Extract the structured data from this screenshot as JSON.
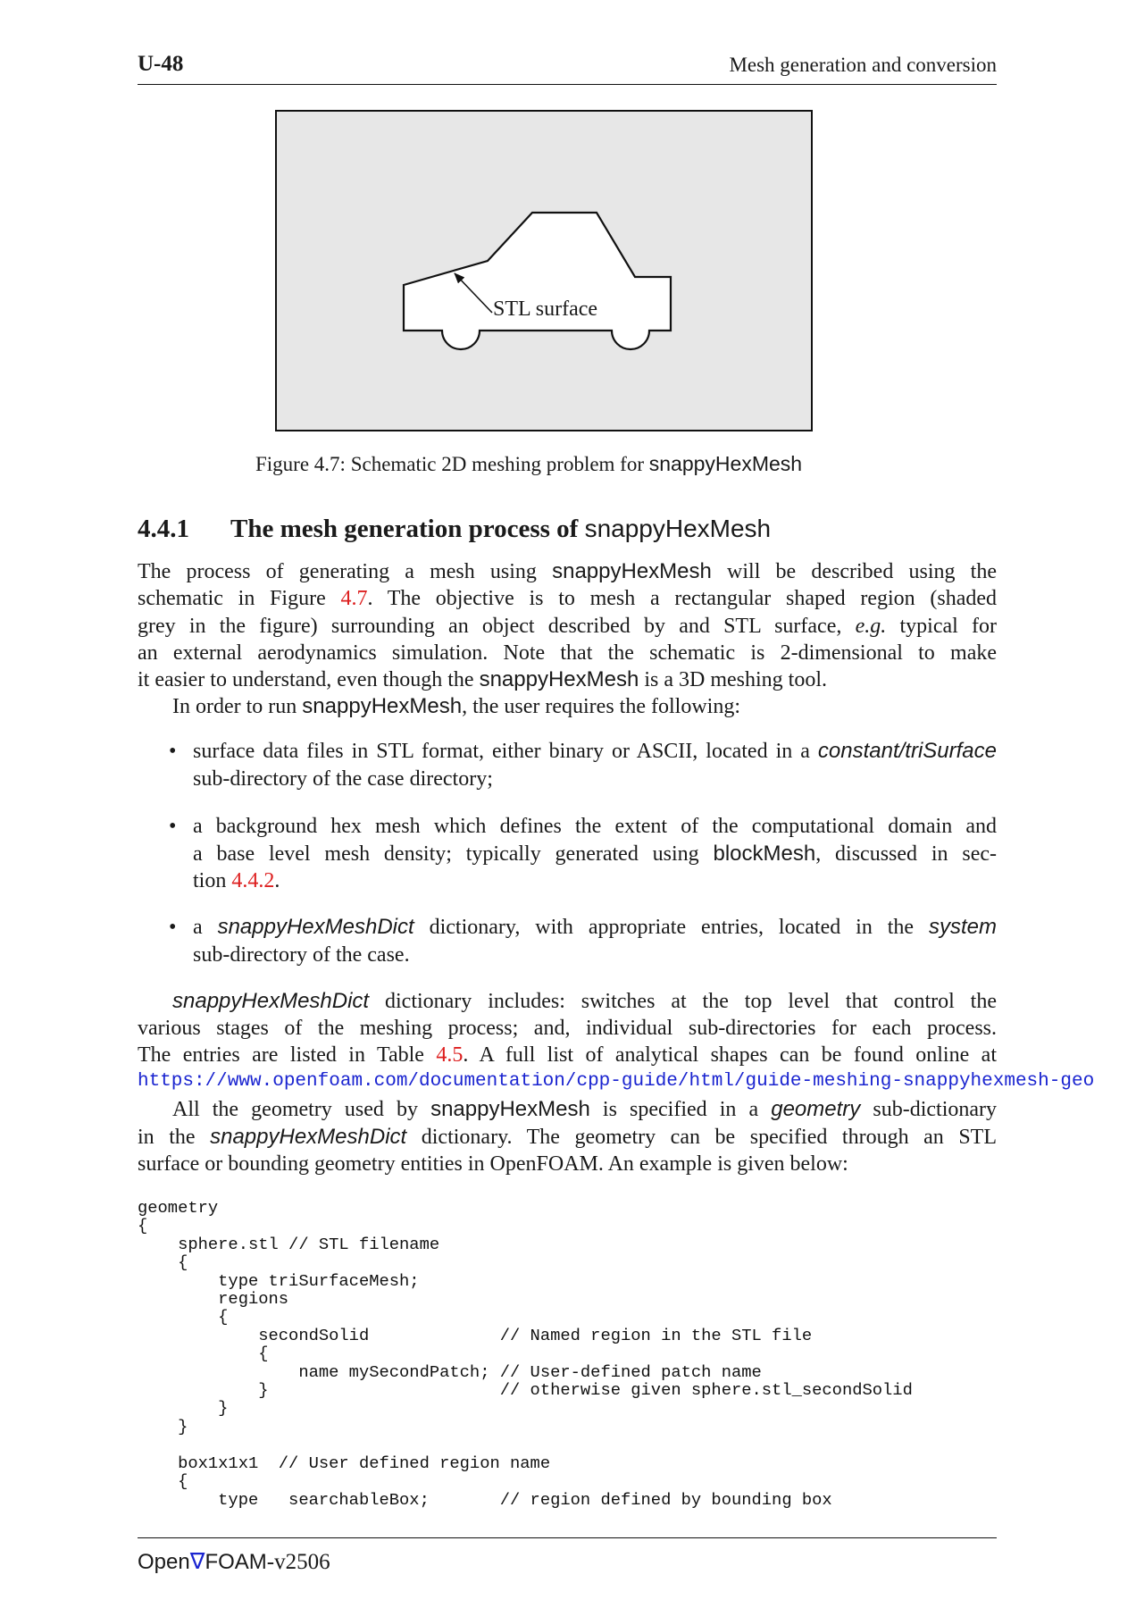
{
  "header": {
    "page_number": "U-48",
    "chapter_title": "Mesh generation and conversion"
  },
  "figure": {
    "stl_label": "STL surface",
    "caption_prefix": "Figure 4.7: Schematic 2D meshing problem for",
    "caption_app": "snappyHexMesh",
    "colors": {
      "background": "#e7e7e7",
      "outline": "#111111"
    },
    "icons": [
      "car-outline-icon",
      "arrow-icon"
    ]
  },
  "section": {
    "number": "4.4.1",
    "title": "The mesh generation process of",
    "title_app": "snappyHexMesh"
  },
  "p1": {
    "l1a": "The process of generating a mesh using",
    "l1app": "snappyHexMesh",
    "l1b": "will be described using the",
    "l2a": "schematic in Figure",
    "l2ref": "4.7",
    "l2b": ". The objective is to mesh a rectangular shaped region (shaded",
    "l3": "grey in the figure) surrounding an object described by and STL surface,",
    "l3em": "e.g.",
    "l3b": "typical for",
    "l4": "an external aerodynamics simulation. Note that the schematic is 2-dimensional to make",
    "l5a": "it easier to understand, even though the",
    "l5app": "snappyHexMesh",
    "l5b": "is a 3D meshing tool."
  },
  "p2": {
    "a": "In order to run",
    "app": "snappyHexMesh",
    "b": ", the user requires the following:"
  },
  "bullets": {
    "b1": {
      "l1": "surface data files in STL format, either binary or ASCII, located in a",
      "path": "constant/triSurface",
      "l2": "sub-directory of the case directory;"
    },
    "b2": {
      "l1": "a background hex mesh which defines the extent of the computational domain and",
      "l2a": "a base level mesh density; typically generated using",
      "l2app": "blockMesh",
      "l2b": ", discussed in sec-",
      "l3a": "tion",
      "l3ref": "4.4.2",
      "l3b": "."
    },
    "b3": {
      "a": "a",
      "dict": "snappyHexMeshDict",
      "b": "dictionary, with appropriate entries, located in the",
      "dir": "system",
      "l2": "sub-directory of the case."
    }
  },
  "p3": {
    "dict": "snappyHexMeshDict",
    "l1": "dictionary includes: switches at the top level that control the",
    "l2": "various stages of the meshing process; and, individual sub-directories for each process.",
    "l3a": "The entries are listed in Table",
    "l3ref": "4.5",
    "l3b": ".   A full list of analytical shapes can be found online at",
    "url": "https://www.openfoam.com/documentation/cpp-guide/html/guide-meshing-snappyhexmesh-geo"
  },
  "p4": {
    "l1a": "All the geometry used by",
    "l1app": "snappyHexMesh",
    "l1b": "is specified in a",
    "l1em": "geometry",
    "l1c": "sub-dictionary",
    "l2a": "in the",
    "l2dict": "snappyHexMeshDict",
    "l2b": "dictionary.  The geometry can be specified through an STL",
    "l3": "surface or bounding geometry entities in OpenFOAM. An example is given below:"
  },
  "code": "geometry\n{\n    sphere.stl // STL filename\n    {\n        type triSurfaceMesh;\n        regions\n        {\n            secondSolid             // Named region in the STL file\n            {\n                name mySecondPatch; // User-defined patch name\n            }                       // otherwise given sphere.stl_secondSolid\n        }\n    }\n\n    box1x1x1  // User defined region name\n    {\n        type   searchableBox;       // region defined by bounding box",
  "footer": {
    "open": "Open",
    "foam": "FOAM",
    "version": "-v2506",
    "logo_color": "#1a24d0"
  }
}
